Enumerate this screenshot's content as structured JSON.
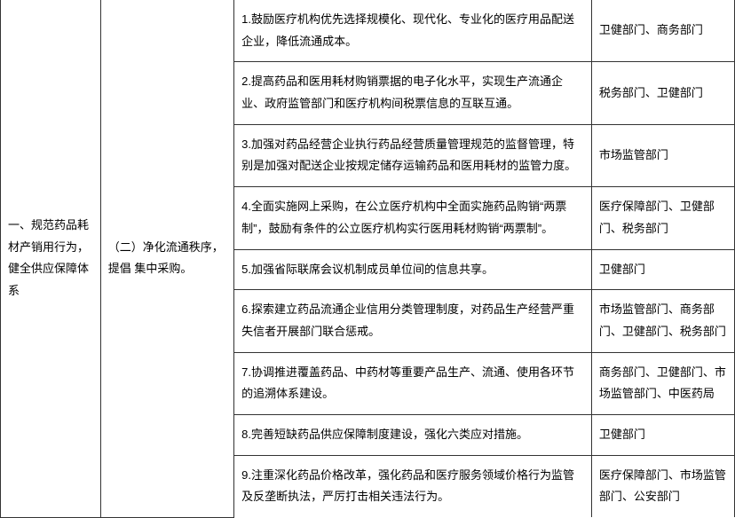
{
  "section": {
    "heading": "一、规范药品耗材产销用行为，健全供应保障体系",
    "subheading": "（二）净化流通秩序，提倡 集中采购。"
  },
  "rows": [
    {
      "task": "1.鼓励医疗机构优先选择规模化、现代化、专业化的医疗用品配送企业，降低流通成本。",
      "dept": "卫健部门、商务部门"
    },
    {
      "task": "2.提高药品和医用耗材购销票据的电子化水平，实现生产流通企业、政府监管部门和医疗机构间税票信息的互联互通。",
      "dept": "税务部门、卫健部门"
    },
    {
      "task": "3.加强对药品经营企业执行药品经营质量管理规范的监督管理，特别是加强对配送企业按规定储存运输药品和医用耗材的监管力度。",
      "dept": "市场监管部门"
    },
    {
      "task": "4.全面实施网上采购，在公立医疗机构中全面实施药品购销“两票制”，鼓励有条件的公立医疗机构实行医用耗材购销“两票制”。",
      "dept": "医疗保障部门、卫健部门、税务部门"
    },
    {
      "task": "5.加强省际联席会议机制成员单位间的信息共享。",
      "dept": "卫健部门"
    },
    {
      "task": "6.探索建立药品流通企业信用分类管理制度，对药品生产经营严重失信者开展部门联合惩戒。",
      "dept": "市场监管部门、商务部门、卫健部门、税务部门"
    },
    {
      "task": "7.协调推进覆盖药品、中药材等重要产品生产、流通、使用各环节的追溯体系建设。",
      "dept": "商务部门、卫健部门、市场监管部门、中医药局"
    },
    {
      "task": "8.完善短缺药品供应保障制度建设，强化六类应对措施。",
      "dept": "卫健部门"
    },
    {
      "task": "9.注重深化药品价格改革，强化药品和医疗服务领域价格行为监管及反垄断执法，严厉打击相关违法行为。",
      "dept": "医疗保障部门、市场监管部门、公安部门"
    }
  ]
}
